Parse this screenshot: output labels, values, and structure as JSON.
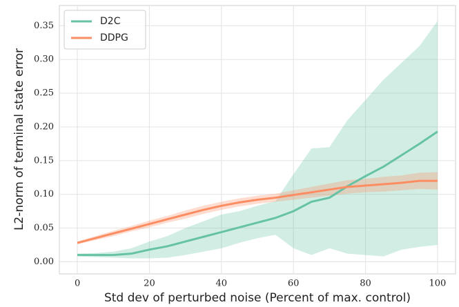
{
  "chart_data": {
    "type": "line",
    "xlabel": "Std dev of perturbed noise (Percent of max. control)",
    "ylabel": "L2-norm of terminal state error",
    "x": [
      0,
      5,
      10,
      15,
      20,
      25,
      30,
      35,
      40,
      45,
      50,
      55,
      60,
      65,
      70,
      75,
      80,
      85,
      90,
      95,
      100
    ],
    "series": [
      {
        "name": "D2C",
        "color": "#66c2a5",
        "values": [
          0.01,
          0.01,
          0.01,
          0.012,
          0.018,
          0.023,
          0.03,
          0.037,
          0.044,
          0.051,
          0.058,
          0.065,
          0.075,
          0.089,
          0.095,
          0.112,
          0.127,
          0.141,
          0.158,
          0.175,
          0.193
        ],
        "lower": [
          0.008,
          0.007,
          0.006,
          0.005,
          0.005,
          0.006,
          0.01,
          0.015,
          0.02,
          0.028,
          0.035,
          0.04,
          0.02,
          0.01,
          0.02,
          0.012,
          0.01,
          0.008,
          0.018,
          0.022,
          0.025
        ],
        "upper": [
          0.012,
          0.013,
          0.015,
          0.02,
          0.03,
          0.038,
          0.05,
          0.06,
          0.07,
          0.075,
          0.083,
          0.09,
          0.13,
          0.168,
          0.17,
          0.21,
          0.24,
          0.27,
          0.295,
          0.32,
          0.357
        ]
      },
      {
        "name": "DDPG",
        "color": "#fc8d62",
        "values": [
          0.028,
          0.035,
          0.042,
          0.049,
          0.056,
          0.063,
          0.07,
          0.077,
          0.083,
          0.088,
          0.092,
          0.095,
          0.099,
          0.103,
          0.107,
          0.111,
          0.113,
          0.115,
          0.117,
          0.12,
          0.12
        ],
        "lower": [
          0.026,
          0.032,
          0.038,
          0.045,
          0.051,
          0.058,
          0.064,
          0.071,
          0.077,
          0.082,
          0.086,
          0.089,
          0.092,
          0.095,
          0.098,
          0.101,
          0.103,
          0.104,
          0.106,
          0.108,
          0.107
        ],
        "upper": [
          0.03,
          0.038,
          0.046,
          0.053,
          0.061,
          0.068,
          0.076,
          0.083,
          0.089,
          0.094,
          0.098,
          0.101,
          0.106,
          0.111,
          0.116,
          0.121,
          0.123,
          0.126,
          0.128,
          0.132,
          0.133
        ]
      }
    ],
    "xlim": [
      -5,
      105
    ],
    "xticks": [
      0,
      20,
      40,
      60,
      80,
      100
    ],
    "ylim": [
      -0.018,
      0.38
    ],
    "yticks": [
      {
        "value": 0,
        "label": "0.00"
      },
      0.05,
      {
        "value": 0.1,
        "label": "0.10"
      },
      0.15,
      {
        "value": 0.2,
        "label": "0.20"
      },
      0.25,
      {
        "value": 0.3,
        "label": "0.30"
      },
      0.35
    ],
    "grid": true,
    "legend": "upper left"
  }
}
